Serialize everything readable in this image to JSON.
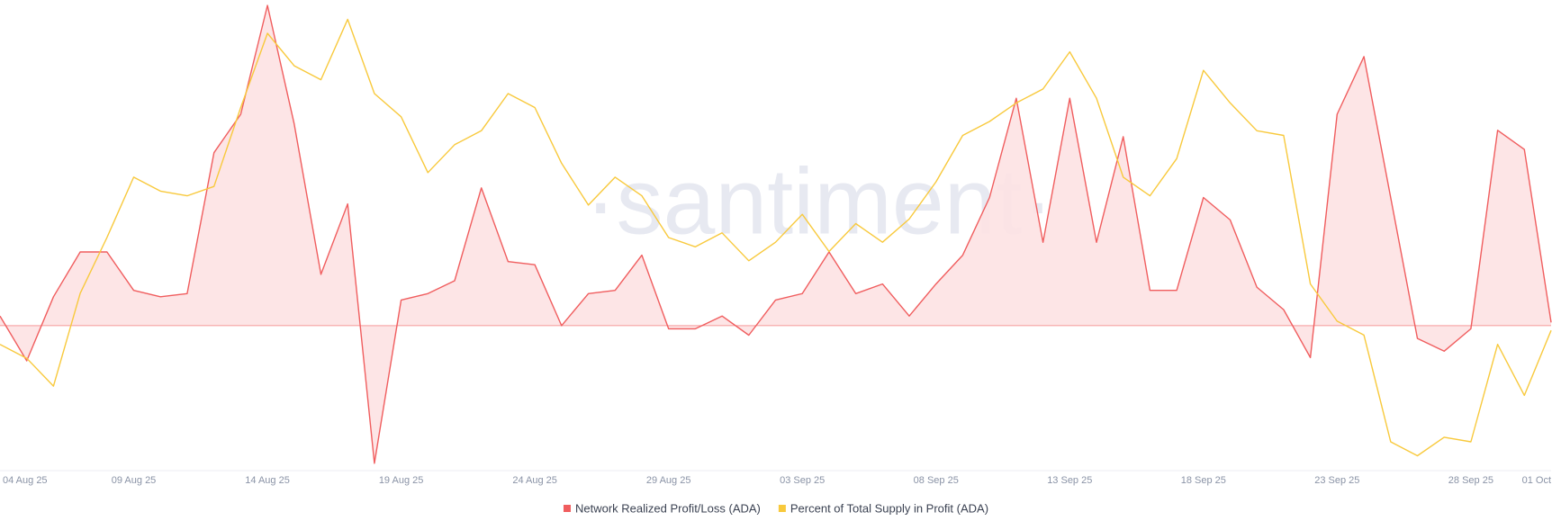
{
  "chart_data": {
    "type": "line",
    "watermark": "·santiment·",
    "categories": [
      "04 Aug 25",
      null,
      null,
      null,
      null,
      "09 Aug 25",
      null,
      null,
      null,
      null,
      "14 Aug 25",
      null,
      null,
      null,
      null,
      "19 Aug 25",
      null,
      null,
      null,
      null,
      "24 Aug 25",
      null,
      null,
      null,
      null,
      "29 Aug 25",
      null,
      null,
      null,
      null,
      "03 Sep 25",
      null,
      null,
      null,
      null,
      "08 Sep 25",
      null,
      null,
      null,
      null,
      "13 Sep 25",
      null,
      null,
      null,
      null,
      "18 Sep 25",
      null,
      null,
      null,
      null,
      "23 Sep 25",
      null,
      null,
      null,
      null,
      "28 Sep 25",
      null,
      null,
      "01 Oct"
    ],
    "ylim": [
      -45,
      100
    ],
    "y2lim": [
      0,
      100
    ],
    "series": [
      {
        "name": "Network Realized Profit/Loss (ADA)",
        "color": "#f05d5e",
        "fill": "#fde2e3",
        "values": [
          3,
          -11,
          9,
          23,
          23,
          11,
          9,
          10,
          54,
          66,
          100,
          63,
          16,
          38,
          -43,
          8,
          10,
          14,
          43,
          20,
          19,
          0,
          10,
          11,
          22,
          -1,
          -1,
          3,
          -3,
          8,
          10,
          23,
          10,
          13,
          3,
          13,
          22,
          40,
          71,
          26,
          71,
          26,
          59,
          11,
          11,
          40,
          33,
          12,
          5,
          -10,
          66,
          84,
          40,
          -4,
          -8,
          -1,
          61,
          55,
          1
        ]
      },
      {
        "name": "Percent of Total Supply in Profit (ADA)",
        "color": "#f8c93c",
        "axis": "y2",
        "values": [
          27,
          24,
          18,
          38,
          50,
          63,
          60,
          59,
          61,
          78,
          94,
          87,
          84,
          97,
          81,
          76,
          64,
          70,
          73,
          81,
          78,
          66,
          57,
          63,
          59,
          50,
          48,
          51,
          45,
          49,
          55,
          47,
          53,
          49,
          54,
          62,
          72,
          75,
          79,
          82,
          90,
          80,
          63,
          59,
          67,
          86,
          79,
          73,
          72,
          40,
          32,
          29,
          6,
          3,
          7,
          6,
          27,
          16,
          30
        ]
      }
    ]
  }
}
